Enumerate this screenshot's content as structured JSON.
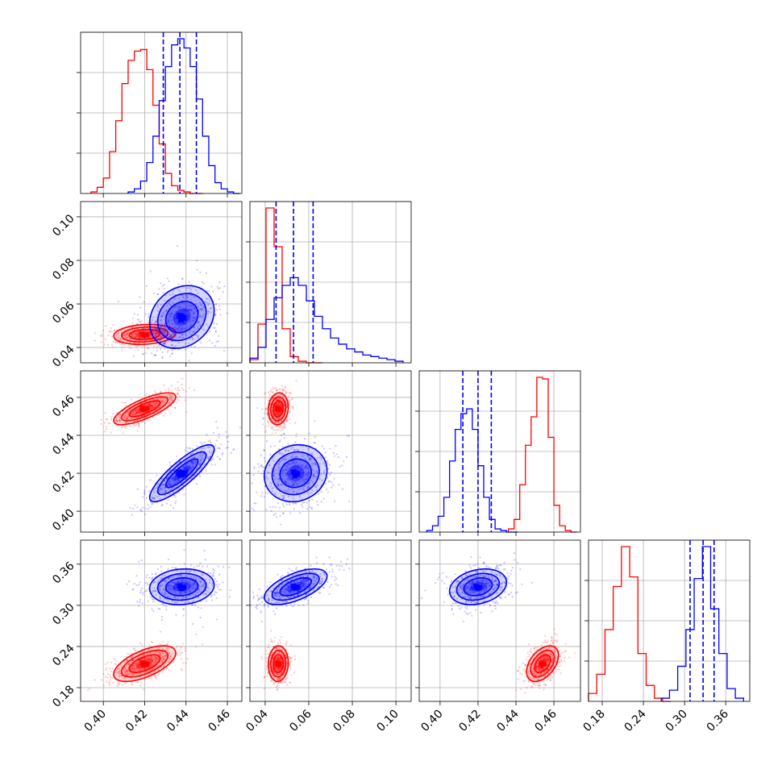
{
  "chart_data": {
    "type": "corner",
    "grid": true,
    "parameters": [
      {
        "range": [
          0.389,
          0.467
        ],
        "ticks": [
          0.4,
          0.42,
          0.44,
          0.46
        ],
        "tick_labels": [
          "0.40",
          "0.42",
          "0.44",
          "0.46"
        ]
      },
      {
        "range": [
          0.033,
          0.107
        ],
        "ticks": [
          0.04,
          0.06,
          0.08,
          0.1
        ],
        "tick_labels": [
          "0.04",
          "0.06",
          "0.08",
          "0.10"
        ]
      },
      {
        "range": [
          0.389,
          0.474
        ],
        "ticks": [
          0.4,
          0.42,
          0.44,
          0.46
        ],
        "tick_labels": [
          "0.40",
          "0.42",
          "0.44",
          "0.46"
        ]
      },
      {
        "range": [
          0.16,
          0.395
        ],
        "ticks": [
          0.18,
          0.24,
          0.3,
          0.36
        ],
        "tick_labels": [
          "0.18",
          "0.24",
          "0.30",
          "0.36"
        ]
      }
    ],
    "series": [
      {
        "color": "#ff0000",
        "means": [
          0.42,
          0.046,
          0.454,
          0.215
        ],
        "sigmas": [
          0.0075,
          0.0023,
          0.0042,
          0.013
        ],
        "correlations": [
          [
            0,
            0.15,
            0.75,
            0.6
          ],
          [
            0.15,
            0,
            0.1,
            0.05
          ],
          [
            0.75,
            0.1,
            0,
            0.45
          ],
          [
            0.6,
            0.05,
            0.45,
            0
          ]
        ],
        "histograms": [
          {
            "bins": [
              0.394,
              0.397,
              0.4,
              0.403,
              0.406,
              0.409,
              0.412,
              0.415,
              0.418,
              0.421,
              0.424,
              0.427,
              0.43,
              0.433,
              0.436,
              0.439,
              0.442,
              0.445,
              0.448
            ],
            "counts": [
              0.01,
              0.04,
              0.1,
              0.27,
              0.47,
              0.71,
              0.86,
              0.92,
              0.93,
              0.8,
              0.57,
              0.32,
              0.13,
              0.05,
              0.02,
              0.01,
              0,
              0
            ]
          },
          {
            "bins": [
              0.033,
              0.0367,
              0.0404,
              0.0441,
              0.0478,
              0.0515,
              0.0552,
              0.0589,
              0.0626,
              0.0663
            ],
            "counts": [
              0.02,
              0.25,
              1.0,
              0.75,
              0.22,
              0.04,
              0.01,
              0.0,
              0.0
            ]
          },
          {
            "bins": [
              0.436,
              0.439,
              0.442,
              0.445,
              0.448,
              0.451,
              0.454,
              0.457,
              0.46,
              0.463,
              0.466,
              0.469,
              0.472
            ],
            "counts": [
              0.02,
              0.08,
              0.3,
              0.55,
              0.73,
              0.98,
              0.97,
              0.6,
              0.17,
              0.04,
              0.01,
              0.0
            ]
          },
          {
            "bins": [
              0.16,
              0.172,
              0.184,
              0.196,
              0.208,
              0.22,
              0.232,
              0.244,
              0.256,
              0.268,
              0.28
            ],
            "counts": [
              0.05,
              0.17,
              0.45,
              0.72,
              0.97,
              0.78,
              0.3,
              0.1,
              0.02,
              0.0
            ]
          }
        ]
      },
      {
        "color": "#0000ff",
        "means": [
          0.438,
          0.054,
          0.42,
          0.327
        ],
        "sigmas": [
          0.0078,
          0.0072,
          0.0075,
          0.013
        ],
        "correlations": [
          [
            0,
            0.2,
            0.85,
            0.1
          ],
          [
            0.2,
            0,
            0.1,
            0.6
          ],
          [
            0.85,
            0.1,
            0,
            0.25
          ],
          [
            0.1,
            0.6,
            0.25,
            0
          ]
        ],
        "histograms": [
          {
            "bins": [
              0.412,
              0.415,
              0.418,
              0.421,
              0.424,
              0.427,
              0.43,
              0.433,
              0.436,
              0.439,
              0.442,
              0.445,
              0.448,
              0.451,
              0.454,
              0.457,
              0.46,
              0.463,
              0.466
            ],
            "counts": [
              0.01,
              0.03,
              0.08,
              0.2,
              0.37,
              0.6,
              0.82,
              0.96,
              1.0,
              0.94,
              0.82,
              0.61,
              0.37,
              0.18,
              0.07,
              0.03,
              0.01,
              0.0
            ]
          },
          {
            "bins": [
              0.033,
              0.0367,
              0.0404,
              0.0441,
              0.0478,
              0.0515,
              0.0552,
              0.0589,
              0.0626,
              0.0663,
              0.07,
              0.0737,
              0.0774,
              0.0811,
              0.0848,
              0.0885,
              0.0922,
              0.0959,
              0.0996,
              0.1033
            ],
            "counts": [
              0.03,
              0.1,
              0.28,
              0.42,
              0.5,
              0.55,
              0.5,
              0.4,
              0.3,
              0.22,
              0.16,
              0.12,
              0.09,
              0.07,
              0.05,
              0.04,
              0.03,
              0.02,
              0.01
            ]
          },
          {
            "bins": [
              0.393,
              0.396,
              0.399,
              0.402,
              0.405,
              0.408,
              0.411,
              0.414,
              0.417,
              0.42,
              0.423,
              0.426,
              0.429,
              0.432,
              0.435,
              0.438,
              0.441
            ],
            "counts": [
              0.01,
              0.04,
              0.1,
              0.22,
              0.45,
              0.65,
              0.75,
              0.78,
              0.65,
              0.42,
              0.22,
              0.08,
              0.02,
              0.01,
              0.0,
              0.0
            ]
          },
          {
            "bins": [
              0.266,
              0.278,
              0.29,
              0.302,
              0.314,
              0.326,
              0.338,
              0.35,
              0.362,
              0.374,
              0.386
            ],
            "counts": [
              0.02,
              0.07,
              0.22,
              0.45,
              0.77,
              0.97,
              0.58,
              0.3,
              0.08,
              0.02
            ]
          }
        ],
        "quantiles": [
          [
            0.429,
            0.437,
            0.445
          ],
          [
            0.045,
            0.053,
            0.062
          ],
          [
            0.412,
            0.42,
            0.427
          ],
          [
            0.308,
            0.327,
            0.343
          ]
        ]
      }
    ]
  }
}
